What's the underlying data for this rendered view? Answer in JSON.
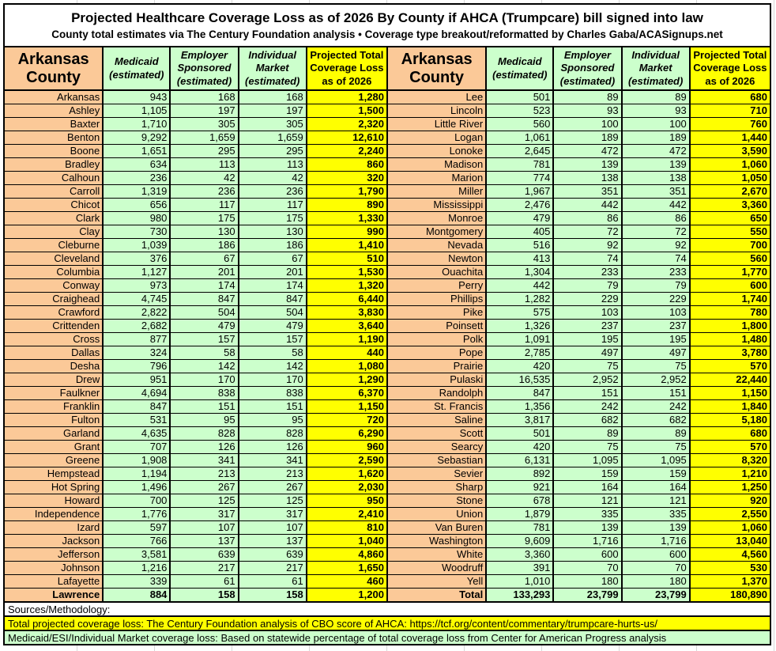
{
  "header": {
    "title": "Projected Healthcare Coverage Loss as of 2026 By County if AHCA (Trumpcare) bill signed into law",
    "subtitle": "County total estimates via The Century Foundation analysis • Coverage type breakout/reformatted by Charles Gaba/ACASignups.net"
  },
  "table": {
    "column_headers": {
      "county": "Arkansas County",
      "medicaid": "Medicaid (estimated)",
      "employer": "Employer Sponsored (estimated)",
      "individual": "Individual Market (estimated)",
      "total": "Projected Total Coverage Loss as of 2026"
    }
  },
  "footer": {
    "sources_label": "Sources/Methodology:",
    "total_loss_note": "Total projected coverage loss: The Century Foundation analysis of CBO score of AHCA: https://tcf.org/content/commentary/trumpcare-hurts-us/",
    "breakout_note": "Medicaid/ESI/Individual Market coverage loss: Based on statewide percentage of total coverage loss from Center for American Progress analysis"
  },
  "colors": {
    "county_bg": "#FBC998",
    "data_bg": "#CCFFCC",
    "highlight_bg": "#FFFF00",
    "border": "#000000"
  },
  "chart_data": {
    "type": "table",
    "title": "Projected Healthcare Coverage Loss as of 2026 By County if AHCA (Trumpcare) bill signed into law",
    "columns": [
      "Arkansas County",
      "Medicaid (estimated)",
      "Employer Sponsored (estimated)",
      "Individual Market (estimated)",
      "Projected Total Coverage Loss as of 2026"
    ],
    "rows": [
      [
        "Arkansas",
        943,
        168,
        168,
        1280
      ],
      [
        "Ashley",
        1105,
        197,
        197,
        1500
      ],
      [
        "Baxter",
        1710,
        305,
        305,
        2320
      ],
      [
        "Benton",
        9292,
        1659,
        1659,
        12610
      ],
      [
        "Boone",
        1651,
        295,
        295,
        2240
      ],
      [
        "Bradley",
        634,
        113,
        113,
        860
      ],
      [
        "Calhoun",
        236,
        42,
        42,
        320
      ],
      [
        "Carroll",
        1319,
        236,
        236,
        1790
      ],
      [
        "Chicot",
        656,
        117,
        117,
        890
      ],
      [
        "Clark",
        980,
        175,
        175,
        1330
      ],
      [
        "Clay",
        730,
        130,
        130,
        990
      ],
      [
        "Cleburne",
        1039,
        186,
        186,
        1410
      ],
      [
        "Cleveland",
        376,
        67,
        67,
        510
      ],
      [
        "Columbia",
        1127,
        201,
        201,
        1530
      ],
      [
        "Conway",
        973,
        174,
        174,
        1320
      ],
      [
        "Craighead",
        4745,
        847,
        847,
        6440
      ],
      [
        "Crawford",
        2822,
        504,
        504,
        3830
      ],
      [
        "Crittenden",
        2682,
        479,
        479,
        3640
      ],
      [
        "Cross",
        877,
        157,
        157,
        1190
      ],
      [
        "Dallas",
        324,
        58,
        58,
        440
      ],
      [
        "Desha",
        796,
        142,
        142,
        1080
      ],
      [
        "Drew",
        951,
        170,
        170,
        1290
      ],
      [
        "Faulkner",
        4694,
        838,
        838,
        6370
      ],
      [
        "Franklin",
        847,
        151,
        151,
        1150
      ],
      [
        "Fulton",
        531,
        95,
        95,
        720
      ],
      [
        "Garland",
        4635,
        828,
        828,
        6290
      ],
      [
        "Grant",
        707,
        126,
        126,
        960
      ],
      [
        "Greene",
        1908,
        341,
        341,
        2590
      ],
      [
        "Hempstead",
        1194,
        213,
        213,
        1620
      ],
      [
        "Hot Spring",
        1496,
        267,
        267,
        2030
      ],
      [
        "Howard",
        700,
        125,
        125,
        950
      ],
      [
        "Independence",
        1776,
        317,
        317,
        2410
      ],
      [
        "Izard",
        597,
        107,
        107,
        810
      ],
      [
        "Jackson",
        766,
        137,
        137,
        1040
      ],
      [
        "Jefferson",
        3581,
        639,
        639,
        4860
      ],
      [
        "Johnson",
        1216,
        217,
        217,
        1650
      ],
      [
        "Lafayette",
        339,
        61,
        61,
        460
      ],
      [
        "Lawrence",
        884,
        158,
        158,
        1200
      ],
      [
        "Lee",
        501,
        89,
        89,
        680
      ],
      [
        "Lincoln",
        523,
        93,
        93,
        710
      ],
      [
        "Little River",
        560,
        100,
        100,
        760
      ],
      [
        "Logan",
        1061,
        189,
        189,
        1440
      ],
      [
        "Lonoke",
        2645,
        472,
        472,
        3590
      ],
      [
        "Madison",
        781,
        139,
        139,
        1060
      ],
      [
        "Marion",
        774,
        138,
        138,
        1050
      ],
      [
        "Miller",
        1967,
        351,
        351,
        2670
      ],
      [
        "Mississippi",
        2476,
        442,
        442,
        3360
      ],
      [
        "Monroe",
        479,
        86,
        86,
        650
      ],
      [
        "Montgomery",
        405,
        72,
        72,
        550
      ],
      [
        "Nevada",
        516,
        92,
        92,
        700
      ],
      [
        "Newton",
        413,
        74,
        74,
        560
      ],
      [
        "Ouachita",
        1304,
        233,
        233,
        1770
      ],
      [
        "Perry",
        442,
        79,
        79,
        600
      ],
      [
        "Phillips",
        1282,
        229,
        229,
        1740
      ],
      [
        "Pike",
        575,
        103,
        103,
        780
      ],
      [
        "Poinsett",
        1326,
        237,
        237,
        1800
      ],
      [
        "Polk",
        1091,
        195,
        195,
        1480
      ],
      [
        "Pope",
        2785,
        497,
        497,
        3780
      ],
      [
        "Prairie",
        420,
        75,
        75,
        570
      ],
      [
        "Pulaski",
        16535,
        2952,
        2952,
        22440
      ],
      [
        "Randolph",
        847,
        151,
        151,
        1150
      ],
      [
        "St. Francis",
        1356,
        242,
        242,
        1840
      ],
      [
        "Saline",
        3817,
        682,
        682,
        5180
      ],
      [
        "Scott",
        501,
        89,
        89,
        680
      ],
      [
        "Searcy",
        420,
        75,
        75,
        570
      ],
      [
        "Sebastian",
        6131,
        1095,
        1095,
        8320
      ],
      [
        "Sevier",
        892,
        159,
        159,
        1210
      ],
      [
        "Sharp",
        921,
        164,
        164,
        1250
      ],
      [
        "Stone",
        678,
        121,
        121,
        920
      ],
      [
        "Union",
        1879,
        335,
        335,
        2550
      ],
      [
        "Van Buren",
        781,
        139,
        139,
        1060
      ],
      [
        "Washington",
        9609,
        1716,
        1716,
        13040
      ],
      [
        "White",
        3360,
        600,
        600,
        4560
      ],
      [
        "Woodruff",
        391,
        70,
        70,
        530
      ],
      [
        "Yell",
        1010,
        180,
        180,
        1370
      ]
    ],
    "total_row": [
      "Total",
      133293,
      23799,
      23799,
      180890
    ]
  }
}
